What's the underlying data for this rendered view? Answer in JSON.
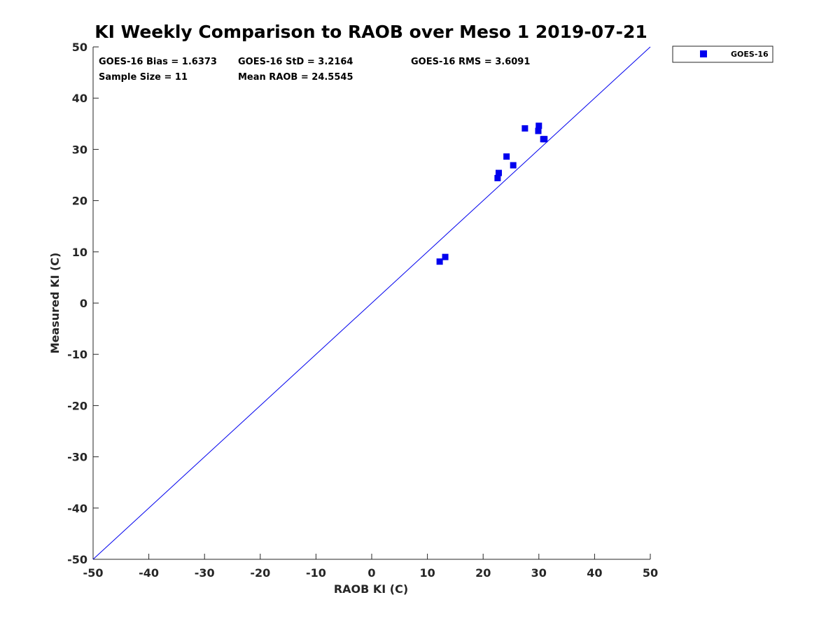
{
  "chart_data": {
    "type": "scatter",
    "title": "KI Weekly Comparison to RAOB over Meso 1 2019-07-21",
    "xlabel": "RAOB KI (C)",
    "ylabel": "Measured KI (C)",
    "xlim": [
      -50,
      50
    ],
    "ylim": [
      -50,
      50
    ],
    "xticks": [
      -50,
      -40,
      -30,
      -20,
      -10,
      0,
      10,
      20,
      30,
      40,
      50
    ],
    "yticks": [
      -50,
      -40,
      -30,
      -20,
      -10,
      0,
      10,
      20,
      30,
      40,
      50
    ],
    "grid": false,
    "legend_position": "outside-top-right",
    "reference_line": {
      "type": "one-to-one",
      "from": [
        -50,
        -50
      ],
      "to": [
        50,
        50
      ]
    },
    "stats": [
      {
        "label": "GOES-16 Bias = 1.6373"
      },
      {
        "label": "GOES-16 StD = 3.2164"
      },
      {
        "label": "GOES-16 RMS = 3.6091"
      },
      {
        "label": "Sample Size = 11"
      },
      {
        "label": "Mean RAOB = 24.5545"
      }
    ],
    "series": [
      {
        "name": "GOES-16",
        "color": "#0000ee",
        "marker": "square",
        "points": [
          {
            "x": 12.2,
            "y": 8.1
          },
          {
            "x": 13.2,
            "y": 9.0
          },
          {
            "x": 22.6,
            "y": 24.4
          },
          {
            "x": 22.8,
            "y": 25.4
          },
          {
            "x": 24.2,
            "y": 28.6
          },
          {
            "x": 25.4,
            "y": 26.9
          },
          {
            "x": 27.5,
            "y": 34.1
          },
          {
            "x": 29.9,
            "y": 33.6
          },
          {
            "x": 30.0,
            "y": 34.6
          },
          {
            "x": 30.8,
            "y": 32.0
          },
          {
            "x": 31.0,
            "y": 32.0
          }
        ]
      }
    ]
  }
}
